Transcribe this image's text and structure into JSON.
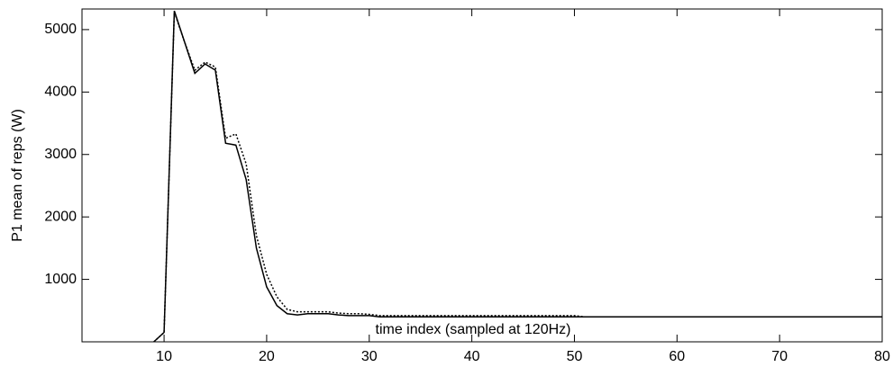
{
  "chart_data": {
    "type": "line",
    "xlabel": "time index (sampled at 120Hz)",
    "ylabel": "P1 mean of reps (W)",
    "x": [
      9,
      10,
      11,
      12,
      13,
      14,
      15,
      16,
      17,
      18,
      19,
      20,
      21,
      22,
      23,
      24,
      25,
      26,
      27,
      28,
      29,
      30,
      31,
      32,
      33,
      34,
      35,
      36,
      37,
      38,
      39,
      40,
      41,
      42,
      43,
      44,
      45,
      46,
      47,
      48,
      49,
      50,
      51,
      52,
      53,
      54,
      55,
      56,
      57,
      58,
      59,
      60,
      61,
      62,
      63,
      64,
      65,
      66,
      67,
      68,
      69,
      70,
      71,
      72,
      73,
      74,
      75,
      76,
      77,
      78,
      79,
      80
    ],
    "series": [
      {
        "color": "#000000",
        "line_style": "solid",
        "values": [
          0,
          150,
          5300,
          4800,
          4300,
          4450,
          4350,
          3180,
          3150,
          2600,
          1500,
          880,
          580,
          450,
          430,
          450,
          450,
          450,
          430,
          420,
          420,
          420,
          400,
          400,
          400,
          400,
          400,
          400,
          400,
          400,
          400,
          400,
          400,
          400,
          400,
          400,
          400,
          400,
          400,
          400,
          400,
          400,
          400,
          400,
          400,
          400,
          400,
          400,
          400,
          400,
          400,
          400,
          400,
          400,
          400,
          400,
          400,
          400,
          400,
          400,
          400,
          400,
          400,
          400,
          400,
          400,
          400,
          400,
          400,
          400,
          400,
          400
        ]
      },
      {
        "color": "#000000",
        "line_style": "dotted",
        "values": [
          0,
          150,
          5280,
          4800,
          4350,
          4480,
          4400,
          3260,
          3330,
          2850,
          1700,
          1080,
          720,
          520,
          480,
          480,
          480,
          480,
          460,
          450,
          450,
          440,
          420,
          420,
          420,
          420,
          420,
          420,
          420,
          420,
          420,
          420,
          420,
          420,
          420,
          420,
          420,
          420,
          420,
          420,
          420,
          420,
          400,
          400,
          400,
          400,
          400,
          400,
          400,
          400,
          400,
          400,
          400,
          400,
          400,
          400,
          400,
          400,
          400,
          400,
          400,
          400,
          400,
          400,
          400,
          400,
          400,
          400,
          400,
          400,
          400,
          400
        ]
      }
    ],
    "xlim": [
      2,
      80
    ],
    "ylim": [
      0,
      5330
    ],
    "xticks": [
      10,
      20,
      30,
      40,
      50,
      60,
      70,
      80
    ],
    "yticks": [
      1000,
      2000,
      3000,
      4000,
      5000
    ],
    "grid": false
  }
}
